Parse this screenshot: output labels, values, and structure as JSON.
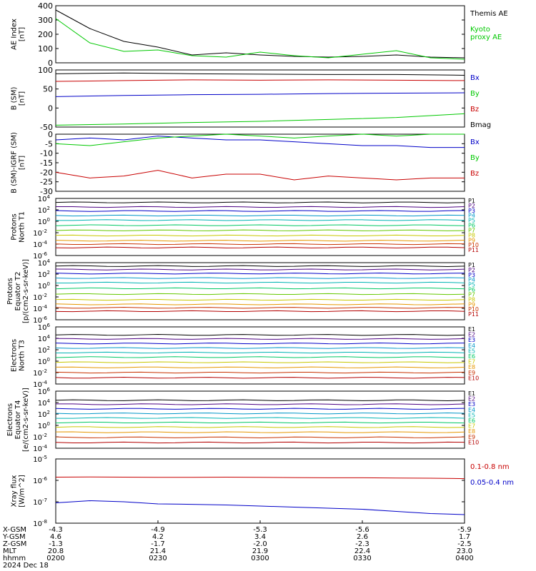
{
  "chart_data": [
    {
      "type": "line",
      "panel": "ae",
      "ylabel": "AE Index\n[nT]",
      "ylim": [
        0,
        400
      ],
      "yticks": [
        "0",
        "100",
        "200",
        "300",
        "400"
      ],
      "ytick_vals": [
        0,
        100,
        200,
        300,
        400
      ],
      "x": [
        0,
        10,
        20,
        30,
        40,
        50,
        60,
        70,
        80,
        90,
        100,
        110,
        120
      ],
      "series": [
        {
          "name": "Themis AE",
          "color": "#000000",
          "values": [
            370,
            240,
            150,
            110,
            55,
            70,
            55,
            45,
            40,
            45,
            55,
            40,
            35
          ]
        },
        {
          "name": "Kyoto\nproxy AE",
          "color": "#00c800",
          "values": [
            310,
            140,
            80,
            90,
            50,
            40,
            75,
            50,
            35,
            60,
            85,
            35,
            25
          ]
        }
      ]
    },
    {
      "type": "line",
      "panel": "bsm",
      "ylabel": "B (SM)\n[nT]",
      "ylim": [
        -50,
        100
      ],
      "yticks": [
        "-50",
        "0",
        "50",
        "100"
      ],
      "ytick_vals": [
        -50,
        0,
        50,
        100
      ],
      "x": [
        0,
        20,
        40,
        60,
        80,
        100,
        120
      ],
      "series": [
        {
          "name": "Bx",
          "color": "#0000c8",
          "values": [
            30,
            33,
            35,
            36,
            38,
            39,
            40
          ]
        },
        {
          "name": "By",
          "color": "#00c800",
          "values": [
            -45,
            -42,
            -38,
            -35,
            -30,
            -25,
            -15
          ]
        },
        {
          "name": "Bz",
          "color": "#c80000",
          "values": [
            70,
            72,
            74,
            73,
            74,
            73,
            72
          ]
        },
        {
          "name": "Bmag",
          "color": "#000000",
          "values": [
            90,
            92,
            90,
            89,
            88,
            88,
            86
          ]
        }
      ]
    },
    {
      "type": "line",
      "panel": "bigrf",
      "ylabel": "B (SM)-IGRF (SM)\n[nT]",
      "ylim": [
        -30,
        0
      ],
      "yticks": [
        "-30",
        "-25",
        "-20",
        "-15",
        "-10",
        "-5",
        "0"
      ],
      "ytick_vals": [
        -30,
        -25,
        -20,
        -15,
        -10,
        -5,
        0
      ],
      "x": [
        0,
        10,
        20,
        30,
        40,
        50,
        60,
        70,
        80,
        90,
        100,
        110,
        120
      ],
      "series": [
        {
          "name": "Bx",
          "color": "#0000c8",
          "values": [
            -3,
            -2,
            -3,
            -1,
            -2,
            -3,
            -3,
            -4,
            -5,
            -6,
            -6,
            -7,
            -7
          ]
        },
        {
          "name": "By",
          "color": "#00c800",
          "values": [
            -5,
            -6,
            -4,
            -2,
            -1,
            0,
            -1,
            -2,
            -1,
            0,
            -1,
            0,
            0
          ]
        },
        {
          "name": "Bz",
          "color": "#c80000",
          "values": [
            -20,
            -23,
            -22,
            -19,
            -23,
            -21,
            -21,
            -24,
            -22,
            -23,
            -24,
            -23,
            -23
          ]
        }
      ]
    },
    {
      "type": "line",
      "panel": "protons_n",
      "ylabel": "Protons\nNorth T1",
      "ylim_log": [
        -6,
        4
      ],
      "yticks": [
        "10-6",
        "10-4",
        "10-2",
        "100",
        "102",
        "104"
      ],
      "channels": [
        "P1",
        "P2",
        "P3",
        "P4",
        "P5",
        "P6",
        "P7",
        "P8",
        "P9",
        "P10",
        "P11"
      ],
      "colors": [
        "#000000",
        "#4b0082",
        "#0000c8",
        "#0096c8",
        "#00b4b4",
        "#00c864",
        "#64c800",
        "#c8c800",
        "#e69600",
        "#c83200",
        "#b40000"
      ],
      "levels_log10": [
        3.3,
        2.5,
        1.8,
        1.0,
        0.2,
        -0.7,
        -1.6,
        -2.5,
        -3.4,
        -4.0,
        -4.6
      ]
    },
    {
      "type": "line",
      "panel": "protons_e",
      "ylabel": "Protons\nEquator T2\n[p/(cm2-s-sr-keV)]",
      "ylim_log": [
        -6,
        4
      ],
      "yticks": [
        "10-6",
        "10-4",
        "10-2",
        "100",
        "102",
        "104"
      ],
      "channels": [
        "P1",
        "P2",
        "P3",
        "P4",
        "P5",
        "P6",
        "P7",
        "P8",
        "P9",
        "P10",
        "P11"
      ],
      "colors": [
        "#000000",
        "#4b0082",
        "#0000c8",
        "#0096c8",
        "#00b4b4",
        "#00c864",
        "#64c800",
        "#c8c800",
        "#e69600",
        "#c83200",
        "#b40000"
      ],
      "levels_log10": [
        3.4,
        2.8,
        2.1,
        1.3,
        0.5,
        -0.5,
        -1.5,
        -2.5,
        -3.3,
        -3.9,
        -4.5
      ]
    },
    {
      "type": "line",
      "panel": "electrons_n",
      "ylabel": "Electrons\nNorth T3",
      "ylim_log": [
        -4,
        6
      ],
      "yticks": [
        "10-4",
        "10-2",
        "100",
        "102",
        "104",
        "106"
      ],
      "channels": [
        "E1",
        "E2",
        "E3",
        "E4",
        "E5",
        "E6",
        "E7",
        "E8",
        "E9",
        "E10"
      ],
      "colors": [
        "#000000",
        "#4b0082",
        "#0000c8",
        "#0096c8",
        "#00b4b4",
        "#00c864",
        "#c8c800",
        "#e69600",
        "#c83200",
        "#b40000"
      ],
      "levels_log10": [
        4.6,
        3.9,
        3.1,
        2.3,
        1.5,
        0.7,
        -0.2,
        -1.1,
        -2.0,
        -2.9
      ]
    },
    {
      "type": "line",
      "panel": "electrons_e",
      "ylabel": "Electrons\nEquator T4\n[e/(cm2-s-sr-keV)]",
      "ylim_log": [
        -4,
        6
      ],
      "yticks": [
        "10-4",
        "10-2",
        "100",
        "102",
        "104",
        "106"
      ],
      "channels": [
        "E1",
        "E2",
        "E3",
        "E4",
        "E5",
        "E6",
        "E7",
        "E8",
        "E9",
        "E10"
      ],
      "colors": [
        "#000000",
        "#4b0082",
        "#0000c8",
        "#0096c8",
        "#00b4b4",
        "#00c864",
        "#c8c800",
        "#e69600",
        "#c83200",
        "#b40000"
      ],
      "levels_log10": [
        4.4,
        3.7,
        2.9,
        2.1,
        1.3,
        0.5,
        -0.3,
        -1.2,
        -2.1,
        -3.0
      ]
    },
    {
      "type": "line",
      "panel": "xray",
      "ylabel": "Xray flux\n[W/m^2]",
      "ylim_log": [
        -8,
        -5
      ],
      "yticks": [
        "10-8",
        "10-7",
        "10-6",
        "10-5"
      ],
      "x": [
        0,
        10,
        20,
        30,
        40,
        50,
        60,
        70,
        80,
        90,
        100,
        110,
        120
      ],
      "series": [
        {
          "name": "0.1-0.8 nm",
          "color": "#c80000",
          "values_log10": [
            -5.85,
            -5.84,
            -5.85,
            -5.86,
            -5.86,
            -5.85,
            -5.86,
            -5.87,
            -5.88,
            -5.88,
            -5.89,
            -5.9,
            -5.92
          ]
        },
        {
          "name": "0.05-0.4 nm",
          "color": "#0000c8",
          "values_log10": [
            -7.05,
            -6.95,
            -7.0,
            -7.1,
            -7.12,
            -7.15,
            -7.2,
            -7.25,
            -7.3,
            -7.35,
            -7.45,
            -7.55,
            -7.6
          ]
        }
      ]
    }
  ],
  "xaxis": {
    "row_labels": [
      "X-GSM",
      "Y-GSM",
      "Z-GSM",
      "MLT",
      "hhmm",
      "2024 Dec 18"
    ],
    "ticks": [
      [
        "-4.3",
        "4.6",
        "-1.3",
        "20.8",
        "0200"
      ],
      [
        "-4.9",
        "4.2",
        "-1.7",
        "21.4",
        "0230"
      ],
      [
        "-5.3",
        "3.4",
        "-2.0",
        "21.9",
        "0300"
      ],
      [
        "-5.6",
        "2.6",
        "-2.3",
        "22.4",
        "0330"
      ],
      [
        "-5.9",
        "1.7",
        "-2.5",
        "23.0",
        "0400"
      ]
    ]
  }
}
